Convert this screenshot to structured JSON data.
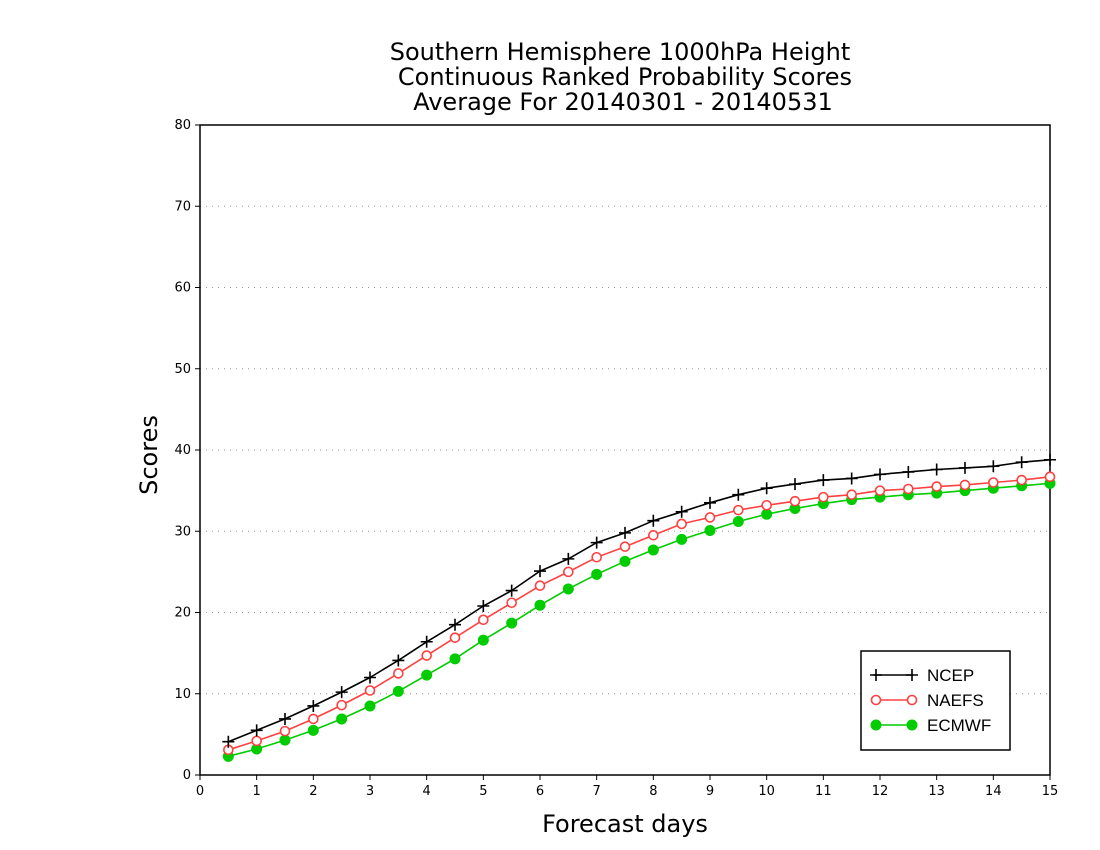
{
  "chart_data": {
    "type": "line",
    "title_lines": [
      "Southern Hemisphere 1000hPa Height",
      "Continuous Ranked Probability Scores",
      "Average For 20140301 - 20140531"
    ],
    "xlabel": "Forecast days",
    "ylabel": "Scores",
    "xlim": [
      0,
      15
    ],
    "ylim": [
      0,
      80
    ],
    "xticks": [
      "0",
      "1",
      "2",
      "3",
      "4",
      "5",
      "6",
      "7",
      "8",
      "9",
      "10",
      "11",
      "12",
      "13",
      "14",
      "15"
    ],
    "yticks": [
      "0",
      "10",
      "20",
      "30",
      "40",
      "50",
      "60",
      "70",
      "80"
    ],
    "grid": "horizontal dotted",
    "legend_position": "bottom-right",
    "x": [
      0.5,
      1,
      1.5,
      2,
      2.5,
      3,
      3.5,
      4,
      4.5,
      5,
      5.5,
      6,
      6.5,
      7,
      7.5,
      8,
      8.5,
      9,
      9.5,
      10,
      10.5,
      11,
      11.5,
      12,
      12.5,
      13,
      13.5,
      14,
      14.5,
      15
    ],
    "series": [
      {
        "name": "NCEP",
        "color": "#000000",
        "marker": "plus",
        "values": [
          4.1,
          5.5,
          6.9,
          8.5,
          10.2,
          12.0,
          14.1,
          16.4,
          18.5,
          20.8,
          22.7,
          25.1,
          26.6,
          28.6,
          29.8,
          31.3,
          32.4,
          33.5,
          34.5,
          35.3,
          35.8,
          36.3,
          36.5,
          37.0,
          37.3,
          37.6,
          37.8,
          38.0,
          38.5,
          38.8
        ]
      },
      {
        "name": "NAEFS",
        "color": "#ff4040",
        "marker": "open-circle",
        "values": [
          3.1,
          4.2,
          5.4,
          6.9,
          8.6,
          10.4,
          12.5,
          14.7,
          16.9,
          19.1,
          21.2,
          23.3,
          25.0,
          26.8,
          28.1,
          29.5,
          30.9,
          31.7,
          32.6,
          33.2,
          33.7,
          34.2,
          34.5,
          35.0,
          35.2,
          35.5,
          35.7,
          36.0,
          36.3,
          36.7
        ]
      },
      {
        "name": "ECMWF",
        "color": "#00cc00",
        "marker": "filled-circle",
        "values": [
          2.3,
          3.2,
          4.3,
          5.5,
          6.9,
          8.5,
          10.3,
          12.3,
          14.3,
          16.6,
          18.7,
          20.9,
          22.9,
          24.7,
          26.3,
          27.7,
          29.0,
          30.1,
          31.2,
          32.1,
          32.8,
          33.4,
          33.9,
          34.2,
          34.5,
          34.7,
          35.0,
          35.3,
          35.6,
          35.9
        ]
      }
    ]
  }
}
